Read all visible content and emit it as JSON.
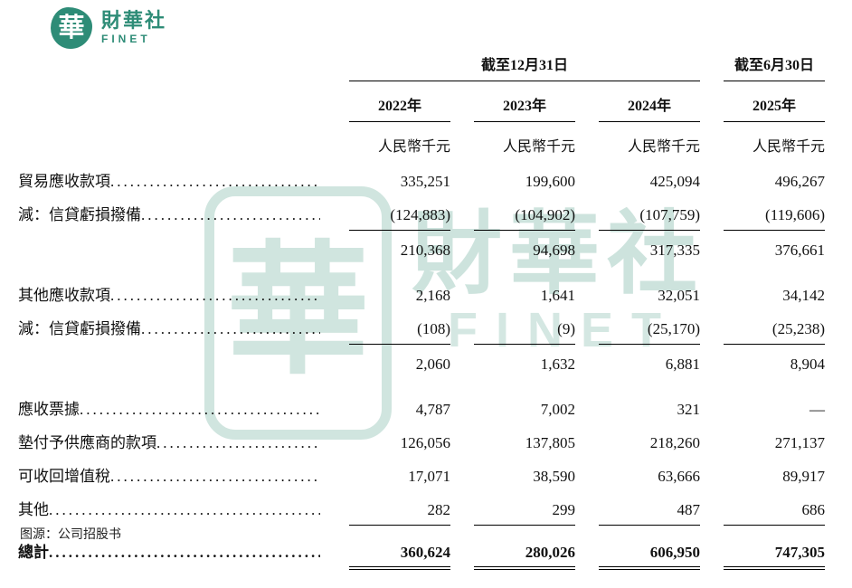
{
  "logo": {
    "seal": "華",
    "brand": "財華社",
    "subbrand": "FINET"
  },
  "watermark": {
    "seal": "華",
    "brand": "財華社",
    "subbrand": "FINET"
  },
  "table": {
    "group_headers": [
      {
        "label": "截至12月31日",
        "span": 3
      },
      {
        "label": "截至6月30日",
        "span": 1
      }
    ],
    "year_headers": [
      "2022年",
      "2023年",
      "2024年",
      "2025年"
    ],
    "units": [
      "人民幣千元",
      "人民幣千元",
      "人民幣千元",
      "人民幣千元"
    ],
    "rows": [
      {
        "label": "貿易應收款項",
        "values": [
          "335,251",
          "199,600",
          "425,094",
          "496,267"
        ]
      },
      {
        "label": "減：信貸虧損撥備",
        "values": [
          "(124,883)",
          "(104,902)",
          "(107,759)",
          "(119,606)"
        ]
      },
      {
        "label": "",
        "values": [
          "210,368",
          "94,698",
          "317,335",
          "376,661"
        ]
      },
      {
        "label": "其他應收款項",
        "values": [
          "2,168",
          "1,641",
          "32,051",
          "34,142"
        ]
      },
      {
        "label": "減：信貸虧損撥備",
        "values": [
          "(108)",
          "(9)",
          "(25,170)",
          "(25,238)"
        ]
      },
      {
        "label": "",
        "values": [
          "2,060",
          "1,632",
          "6,881",
          "8,904"
        ]
      },
      {
        "label": "應收票據",
        "values": [
          "4,787",
          "7,002",
          "321",
          "—"
        ]
      },
      {
        "label": "墊付予供應商的款項",
        "values": [
          "126,056",
          "137,805",
          "218,260",
          "271,137"
        ]
      },
      {
        "label": "可收回增值稅",
        "values": [
          "17,071",
          "38,590",
          "63,666",
          "89,917"
        ]
      },
      {
        "label": "其他",
        "values": [
          "282",
          "299",
          "487",
          "686"
        ]
      },
      {
        "label": "總計",
        "values": [
          "360,624",
          "280,026",
          "606,950",
          "747,305"
        ]
      }
    ]
  },
  "chart_data": {
    "type": "table",
    "unit": "人民幣千元",
    "column_groups": [
      {
        "label": "截至12月31日",
        "columns": [
          "2022年",
          "2023年",
          "2024年"
        ]
      },
      {
        "label": "截至6月30日",
        "columns": [
          "2025年"
        ]
      }
    ],
    "rows": [
      {
        "label": "貿易應收款項",
        "values": [
          335251,
          199600,
          425094,
          496267
        ]
      },
      {
        "label": "減：信貸虧損撥備",
        "values": [
          -124883,
          -104902,
          -107759,
          -119606
        ]
      },
      {
        "label": "",
        "values": [
          210368,
          94698,
          317335,
          376661
        ]
      },
      {
        "label": "其他應收款項",
        "values": [
          2168,
          1641,
          32051,
          34142
        ]
      },
      {
        "label": "減：信貸虧損撥備",
        "values": [
          -108,
          -9,
          -25170,
          -25238
        ]
      },
      {
        "label": "",
        "values": [
          2060,
          1632,
          6881,
          8904
        ]
      },
      {
        "label": "應收票據",
        "values": [
          4787,
          7002,
          321,
          null
        ]
      },
      {
        "label": "墊付予供應商的款項",
        "values": [
          126056,
          137805,
          218260,
          271137
        ]
      },
      {
        "label": "可收回增值稅",
        "values": [
          17071,
          38590,
          63666,
          89917
        ]
      },
      {
        "label": "其他",
        "values": [
          282,
          299,
          487,
          686
        ]
      },
      {
        "label": "總計",
        "values": [
          360624,
          280026,
          606950,
          747305
        ]
      }
    ]
  },
  "source_note": "图源：公司招股书",
  "colors": {
    "brand_teal": "#2E8C77",
    "watermark_teal": "#BFDCD4",
    "text": "#111111",
    "background": "#FFFFFF"
  }
}
